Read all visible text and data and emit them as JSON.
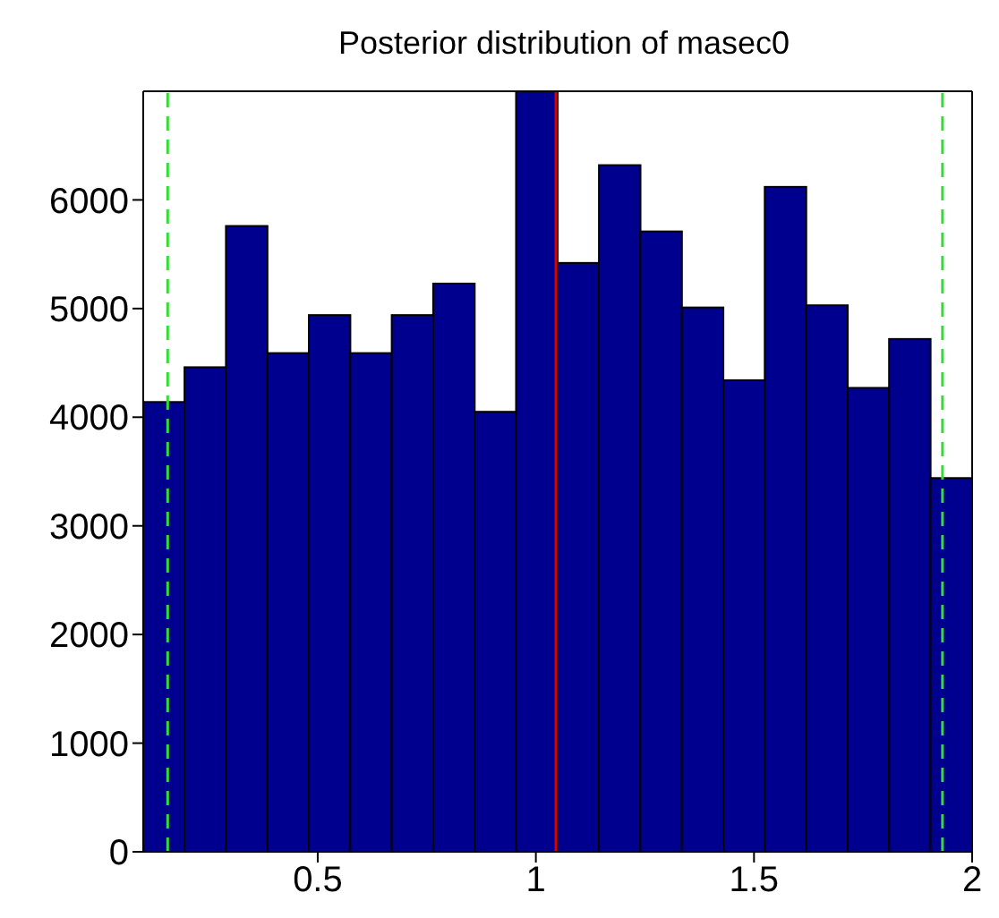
{
  "chart_data": {
    "type": "histogram",
    "title": "Posterior distribution of masec0",
    "bins": [
      0.1,
      0.195,
      0.29,
      0.385,
      0.48,
      0.575,
      0.67,
      0.765,
      0.86,
      0.955,
      1.05,
      1.145,
      1.24,
      1.335,
      1.43,
      1.525,
      1.62,
      1.715,
      1.81,
      1.905,
      2.0
    ],
    "values": [
      4140,
      4460,
      5760,
      4590,
      4940,
      4590,
      4940,
      5230,
      4050,
      7000,
      5420,
      6320,
      5710,
      5010,
      4340,
      6120,
      5030,
      4270,
      4720,
      3440
    ],
    "color": "#00008f",
    "xlim": [
      0.1,
      2.0
    ],
    "xticks": [
      0.5,
      1,
      1.5,
      2
    ],
    "ylim": [
      0,
      7000
    ],
    "yticks": [
      0,
      1000,
      2000,
      3000,
      4000,
      5000,
      6000
    ],
    "ref_lines": [
      {
        "axis": "x",
        "value": 0.156,
        "color": "#33dd33",
        "line_style": "dashed"
      },
      {
        "axis": "x",
        "value": 1.046,
        "color": "#dd0000",
        "line_style": "solid"
      },
      {
        "axis": "x",
        "value": 1.932,
        "color": "#33dd33",
        "line_style": "dashed"
      }
    ],
    "grid": false
  }
}
